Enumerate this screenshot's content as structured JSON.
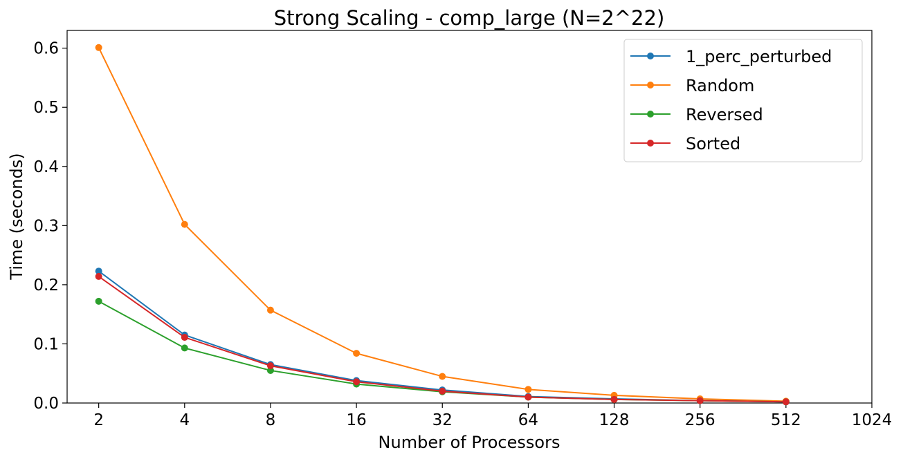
{
  "chart_data": {
    "type": "line",
    "title": "Strong Scaling - comp_large (N=2^22)",
    "xlabel": "Number of Processors",
    "ylabel": "Time (seconds)",
    "x_scale": "log2",
    "x": [
      2,
      4,
      8,
      16,
      32,
      64,
      128,
      256,
      512
    ],
    "xticks": [
      "2",
      "4",
      "8",
      "16",
      "32",
      "64",
      "128",
      "256",
      "512",
      "1024"
    ],
    "xlim": [
      1.55,
      1024
    ],
    "ylim": [
      0,
      0.63
    ],
    "yticks": [
      "0.0",
      "0.1",
      "0.2",
      "0.3",
      "0.4",
      "0.5",
      "0.6"
    ],
    "grid": false,
    "legend_position": "upper right",
    "series": [
      {
        "name": "1_perc_perturbed",
        "color": "#1f77b4",
        "values": [
          0.223,
          0.115,
          0.065,
          0.038,
          0.022,
          0.011,
          0.007,
          0.004,
          0.002
        ]
      },
      {
        "name": "Random",
        "color": "#ff7f0e",
        "values": [
          0.601,
          0.302,
          0.157,
          0.084,
          0.045,
          0.023,
          0.013,
          0.007,
          0.003
        ]
      },
      {
        "name": "Reversed",
        "color": "#2ca02c",
        "values": [
          0.172,
          0.093,
          0.055,
          0.032,
          0.019,
          0.01,
          0.006,
          0.004,
          0.002
        ]
      },
      {
        "name": "Sorted",
        "color": "#d62728",
        "values": [
          0.214,
          0.111,
          0.063,
          0.036,
          0.02,
          0.01,
          0.006,
          0.004,
          0.002
        ]
      }
    ]
  }
}
